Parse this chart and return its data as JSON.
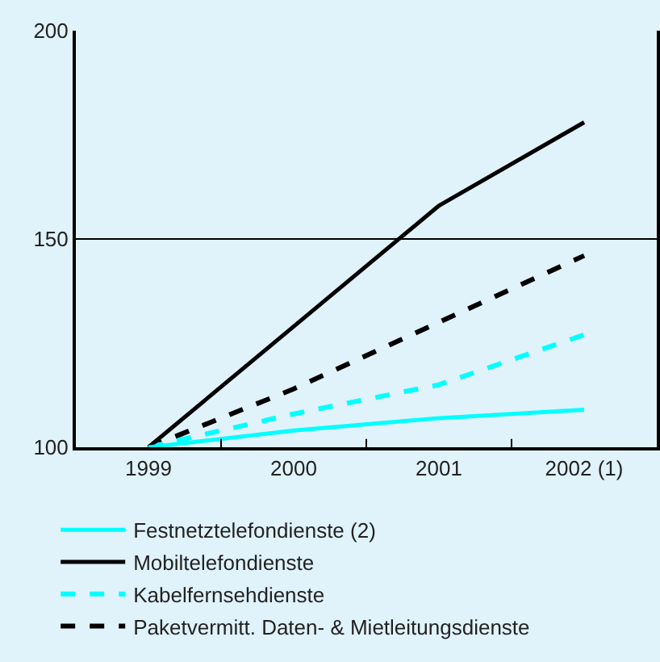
{
  "chart_data": {
    "type": "line",
    "categories": [
      "1999",
      "2000",
      "2001",
      "2002 (1)"
    ],
    "series": [
      {
        "name": "Festnetztelefondienste (2)",
        "color": "#00ffff",
        "values": [
          100,
          104,
          107,
          109
        ],
        "line_style": "solid"
      },
      {
        "name": "Mobiltelefondienste",
        "color": "#000000",
        "values": [
          100,
          129,
          158,
          178
        ],
        "line_style": "solid"
      },
      {
        "name": "Kabelfernsehdienste",
        "color": "#00ffff",
        "values": [
          100,
          108,
          115,
          127
        ],
        "line_style": "dashed"
      },
      {
        "name": "Paketvermitt. Daten- & Mietleitungsdienste",
        "color": "#000000",
        "values": [
          100,
          114,
          130,
          146
        ],
        "line_style": "dashed"
      }
    ],
    "ylim": [
      100,
      200
    ],
    "yticks": [
      100,
      150,
      200
    ],
    "grid": "y",
    "legend": "bottom",
    "marker": "none"
  }
}
